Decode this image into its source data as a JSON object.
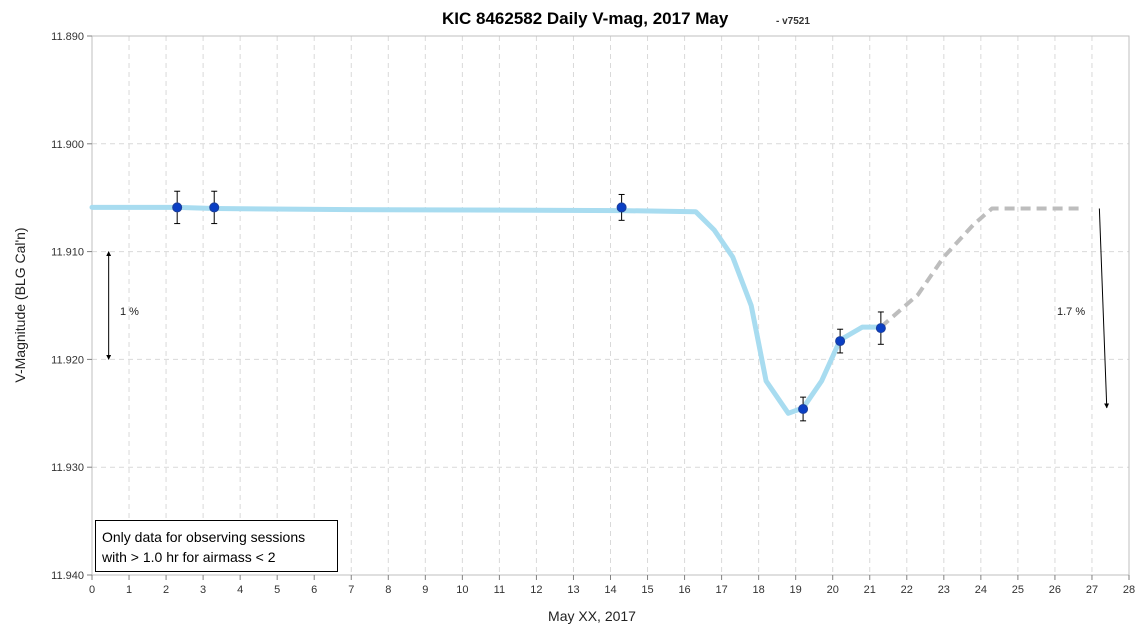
{
  "chart_data": {
    "type": "line",
    "title": "KIC 8462582 Daily V-mag, 2017 May",
    "subtitle": "- v7521",
    "xlabel": "May XX, 2017",
    "ylabel": "V-Magnitude (BLG Cal'n)",
    "xlim": [
      0,
      28
    ],
    "ylim": [
      11.89,
      11.94
    ],
    "y_inverted": true,
    "x_ticks": [
      "0",
      "1",
      "2",
      "3",
      "4",
      "5",
      "6",
      "7",
      "8",
      "9",
      "10",
      "11",
      "12",
      "13",
      "14",
      "15",
      "16",
      "17",
      "18",
      "19",
      "20",
      "21",
      "22",
      "23",
      "24",
      "25",
      "26",
      "27",
      "28"
    ],
    "y_ticks": [
      "11.890",
      "11.900",
      "11.910",
      "11.920",
      "11.930",
      "11.940"
    ],
    "y_tick_values": [
      11.89,
      11.9,
      11.91,
      11.92,
      11.93,
      11.94
    ],
    "grid": "dashed vertical and horizontal",
    "series": [
      {
        "style": "solid",
        "color": "#a8dcf0",
        "x": [
          0.0,
          2.3,
          3.3,
          7.0,
          14.3,
          16.3,
          16.8,
          17.3,
          17.8,
          18.2,
          18.8,
          19.2,
          19.7,
          20.2,
          20.8,
          21.3
        ],
        "y": [
          11.9059,
          11.9059,
          11.906,
          11.9061,
          11.9062,
          11.9063,
          11.908,
          11.9105,
          11.915,
          11.922,
          11.925,
          11.9245,
          11.922,
          11.9182,
          11.917,
          11.917
        ]
      },
      {
        "style": "dashed",
        "color": "#bdbdbd",
        "x": [
          21.3,
          22.3,
          23.0,
          23.8,
          24.3,
          25.0,
          26.8
        ],
        "y": [
          11.917,
          11.914,
          11.9105,
          11.9075,
          11.906,
          11.906,
          11.906
        ]
      },
      {
        "style": "points",
        "color": "#0a3fc4",
        "x": [
          2.3,
          3.3,
          14.3,
          19.2,
          20.2,
          21.3
        ],
        "y": [
          11.9059,
          11.9059,
          11.9059,
          11.9246,
          11.9183,
          11.9171
        ],
        "yerr": [
          0.0015,
          0.0015,
          0.0012,
          0.0011,
          0.0011,
          0.0015
        ]
      }
    ],
    "annotations": [
      {
        "text": "1 %",
        "arrow_x": 0.45,
        "arrow_y": [
          11.91,
          11.92
        ]
      },
      {
        "text": "1.7 %",
        "arrow_x": [
          27.2,
          27.4
        ],
        "arrow_y": [
          11.906,
          11.9245
        ]
      }
    ],
    "note_lines": [
      "Only data for observing sessions",
      "with > 1.0 hr for airmass < 2"
    ]
  }
}
